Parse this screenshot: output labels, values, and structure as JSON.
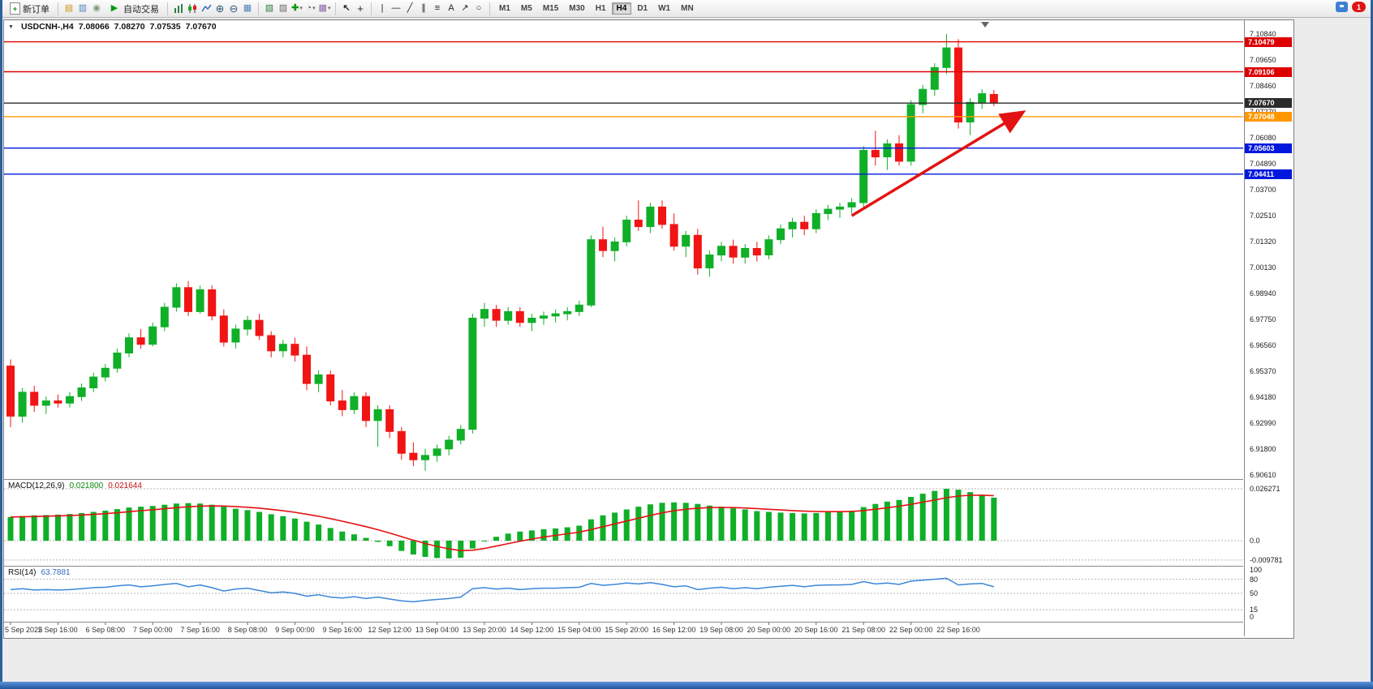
{
  "toolbar": {
    "new_order_label": "新订单",
    "autotrading_label": "自动交易",
    "timeframes": [
      "M1",
      "M5",
      "M15",
      "M30",
      "H1",
      "H4",
      "D1",
      "W1",
      "MN"
    ],
    "active_timeframe": "H4",
    "notification_count": "1"
  },
  "chart": {
    "symbol_period": "USDCNH-,H4",
    "open": "7.08066",
    "high": "7.08270",
    "low": "7.07535",
    "close": "7.07670"
  },
  "chart_data": [
    {
      "id": "main",
      "type": "candlestick",
      "title": "USDCNH-,H4",
      "ohlc_display": [
        "7.08066",
        "7.08270",
        "7.07535",
        "7.07670"
      ],
      "y_range": [
        6.9042,
        7.1147
      ],
      "price_ticks": [
        "7.10840",
        "7.09650",
        "7.08460",
        "7.07270",
        "7.06080",
        "7.04890",
        "7.03700",
        "7.02510",
        "7.01320",
        "7.00130",
        "6.98940",
        "6.97750",
        "6.96560",
        "6.95370",
        "6.94180",
        "6.92990",
        "6.91800",
        "6.90610"
      ],
      "x_labels": [
        "5 Sep 2022",
        "5 Sep 16:00",
        "6 Sep 08:00",
        "7 Sep 00:00",
        "7 Sep 16:00",
        "8 Sep 08:00",
        "9 Sep 00:00",
        "9 Sep 16:00",
        "12 Sep 12:00",
        "13 Sep 04:00",
        "13 Sep 20:00",
        "14 Sep 12:00",
        "15 Sep 04:00",
        "15 Sep 20:00",
        "16 Sep 12:00",
        "19 Sep 08:00",
        "20 Sep 00:00",
        "20 Sep 16:00",
        "21 Sep 08:00",
        "22 Sep 00:00",
        "22 Sep 16:00"
      ],
      "colors": {
        "up": "#0faf28",
        "down": "#f11414",
        "background": "#ffffff"
      },
      "hlines": [
        {
          "name": "resistance-line-upper",
          "price": 7.10479,
          "label": "7.10479",
          "color": "#dd0000"
        },
        {
          "name": "resistance-line-lower",
          "price": 7.09106,
          "label": "7.09106",
          "color": "#dd0000"
        },
        {
          "name": "current-price-line",
          "price": 7.0767,
          "label": "7.07670",
          "color": "#2b2b2b"
        },
        {
          "name": "pivot-line-orange",
          "price": 7.07048,
          "label": "7.07048",
          "color": "#ff9800"
        },
        {
          "name": "support-line-upper",
          "price": 7.05603,
          "label": "7.05603",
          "color": "#0018dd"
        },
        {
          "name": "support-line-lower",
          "price": 7.04411,
          "label": "7.04411",
          "color": "#0018dd"
        }
      ],
      "trend_arrow": {
        "from_candle": 71,
        "from_price": 7.025,
        "to_candle": 85.3,
        "to_price": 7.072,
        "color": "#e31212"
      },
      "candles": [
        [
          6.956,
          6.959,
          6.928,
          6.933
        ],
        [
          6.933,
          6.946,
          6.93,
          6.944
        ],
        [
          6.944,
          6.947,
          6.935,
          6.938
        ],
        [
          6.938,
          6.942,
          6.934,
          6.94
        ],
        [
          6.94,
          6.943,
          6.937,
          6.939
        ],
        [
          6.939,
          6.944,
          6.937,
          6.942
        ],
        [
          6.942,
          6.948,
          6.94,
          6.946
        ],
        [
          6.946,
          6.953,
          6.944,
          6.951
        ],
        [
          6.951,
          6.957,
          6.949,
          6.955
        ],
        [
          6.955,
          6.964,
          6.953,
          6.962
        ],
        [
          6.962,
          6.971,
          6.96,
          6.969
        ],
        [
          6.969,
          6.973,
          6.964,
          6.966
        ],
        [
          6.966,
          6.976,
          6.965,
          6.974
        ],
        [
          6.974,
          6.985,
          6.972,
          6.983
        ],
        [
          6.983,
          6.994,
          6.981,
          6.992
        ],
        [
          6.992,
          6.995,
          6.979,
          6.981
        ],
        [
          6.981,
          6.993,
          6.98,
          6.991
        ],
        [
          6.991,
          6.993,
          6.977,
          6.979
        ],
        [
          6.979,
          6.982,
          6.965,
          6.967
        ],
        [
          6.967,
          6.975,
          6.964,
          6.973
        ],
        [
          6.973,
          6.979,
          6.97,
          6.977
        ],
        [
          6.977,
          6.98,
          6.968,
          6.97
        ],
        [
          6.97,
          6.972,
          6.96,
          6.963
        ],
        [
          6.963,
          6.968,
          6.96,
          6.966
        ],
        [
          6.966,
          6.969,
          6.958,
          6.961
        ],
        [
          6.961,
          6.965,
          6.945,
          6.948
        ],
        [
          6.948,
          6.954,
          6.944,
          6.952
        ],
        [
          6.952,
          6.954,
          6.938,
          6.94
        ],
        [
          6.94,
          6.945,
          6.933,
          6.936
        ],
        [
          6.936,
          6.944,
          6.934,
          6.942
        ],
        [
          6.942,
          6.944,
          6.928,
          6.931
        ],
        [
          6.931,
          6.938,
          6.919,
          6.936
        ],
        [
          6.936,
          6.938,
          6.923,
          6.926
        ],
        [
          6.926,
          6.928,
          6.913,
          6.916
        ],
        [
          6.916,
          6.921,
          6.91,
          6.913
        ],
        [
          6.913,
          6.918,
          6.908,
          6.915
        ],
        [
          6.915,
          6.92,
          6.912,
          6.918
        ],
        [
          6.918,
          6.924,
          6.915,
          6.922
        ],
        [
          6.922,
          6.929,
          6.92,
          6.927
        ],
        [
          6.927,
          6.98,
          6.925,
          6.978
        ],
        [
          6.978,
          6.985,
          6.974,
          6.982
        ],
        [
          6.982,
          6.984,
          6.974,
          6.977
        ],
        [
          6.977,
          6.983,
          6.975,
          6.981
        ],
        [
          6.981,
          6.983,
          6.974,
          6.976
        ],
        [
          6.976,
          6.98,
          6.972,
          6.978
        ],
        [
          6.978,
          6.981,
          6.975,
          6.979
        ],
        [
          6.979,
          6.982,
          6.976,
          6.98
        ],
        [
          6.98,
          6.983,
          6.977,
          6.981
        ],
        [
          6.981,
          6.986,
          6.979,
          6.984
        ],
        [
          6.984,
          7.016,
          6.983,
          7.014
        ],
        [
          7.014,
          7.02,
          7.006,
          7.009
        ],
        [
          7.009,
          7.015,
          7.004,
          7.013
        ],
        [
          7.013,
          7.025,
          7.011,
          7.023
        ],
        [
          7.023,
          7.032,
          7.018,
          7.02
        ],
        [
          7.02,
          7.031,
          7.017,
          7.029
        ],
        [
          7.029,
          7.032,
          7.019,
          7.021
        ],
        [
          7.021,
          7.026,
          7.009,
          7.011
        ],
        [
          7.011,
          7.018,
          7.006,
          7.016
        ],
        [
          7.016,
          7.019,
          6.998,
          7.001
        ],
        [
          7.001,
          7.009,
          6.997,
          7.007
        ],
        [
          7.007,
          7.013,
          7.004,
          7.011
        ],
        [
          7.011,
          7.014,
          7.003,
          7.006
        ],
        [
          7.006,
          7.012,
          7.003,
          7.01
        ],
        [
          7.01,
          7.013,
          7.004,
          7.007
        ],
        [
          7.007,
          7.016,
          7.005,
          7.014
        ],
        [
          7.014,
          7.021,
          7.012,
          7.019
        ],
        [
          7.019,
          7.024,
          7.015,
          7.022
        ],
        [
          7.022,
          7.025,
          7.016,
          7.019
        ],
        [
          7.019,
          7.028,
          7.017,
          7.026
        ],
        [
          7.026,
          7.03,
          7.023,
          7.028
        ],
        [
          7.028,
          7.031,
          7.024,
          7.029
        ],
        [
          7.029,
          7.033,
          7.026,
          7.031
        ],
        [
          7.031,
          7.057,
          7.029,
          7.055
        ],
        [
          7.055,
          7.064,
          7.048,
          7.052
        ],
        [
          7.052,
          7.06,
          7.046,
          7.058
        ],
        [
          7.058,
          7.062,
          7.048,
          7.05
        ],
        [
          7.05,
          7.078,
          7.048,
          7.076
        ],
        [
          7.076,
          7.085,
          7.072,
          7.083
        ],
        [
          7.083,
          7.095,
          7.08,
          7.093
        ],
        [
          7.093,
          7.1084,
          7.09,
          7.102
        ],
        [
          7.102,
          7.106,
          7.065,
          7.068
        ],
        [
          7.068,
          7.079,
          7.062,
          7.077
        ],
        [
          7.077,
          7.083,
          7.074,
          7.081
        ],
        [
          7.08066,
          7.0827,
          7.07535,
          7.0767
        ]
      ]
    },
    {
      "id": "macd",
      "type": "bar",
      "label": "MACD(12,26,9)",
      "value_main": "0.021800",
      "value_signal": "0.021644",
      "y_ticks": [
        {
          "value": 0.026271,
          "label": "0.026271"
        },
        {
          "value": 0,
          "label": "0.0"
        },
        {
          "value": -0.009781,
          "label": "-0.009781"
        }
      ],
      "colors": {
        "histogram": "#0faf28",
        "signal": "#e31212"
      },
      "signal_period": 9,
      "histogram": [
        0.012,
        0.0125,
        0.0128,
        0.013,
        0.0132,
        0.0135,
        0.014,
        0.0146,
        0.0152,
        0.016,
        0.0168,
        0.0172,
        0.0176,
        0.0182,
        0.0188,
        0.019,
        0.0188,
        0.0182,
        0.0172,
        0.0162,
        0.0155,
        0.0146,
        0.0134,
        0.0124,
        0.0112,
        0.0096,
        0.0082,
        0.0064,
        0.0046,
        0.0032,
        0.0014,
        -0.0006,
        -0.0028,
        -0.0052,
        -0.007,
        -0.0082,
        -0.0088,
        -0.009,
        -0.0086,
        -0.004,
        -0.0004,
        0.002,
        0.0036,
        0.0046,
        0.0052,
        0.0058,
        0.0062,
        0.0068,
        0.0076,
        0.0108,
        0.0128,
        0.0142,
        0.0158,
        0.0172,
        0.0184,
        0.0192,
        0.0194,
        0.0192,
        0.0186,
        0.0178,
        0.0172,
        0.0164,
        0.0158,
        0.015,
        0.0146,
        0.0142,
        0.014,
        0.0138,
        0.014,
        0.0144,
        0.0148,
        0.0152,
        0.017,
        0.0186,
        0.0198,
        0.0206,
        0.0222,
        0.0238,
        0.0252,
        0.0263,
        0.0258,
        0.0246,
        0.0232,
        0.0218
      ]
    },
    {
      "id": "rsi",
      "type": "line",
      "label": "RSI(14)",
      "value": "63.7881",
      "levels": [
        80,
        50,
        15
      ],
      "y_ticks": [
        {
          "value": 100,
          "label": "100"
        },
        {
          "value": 80,
          "label": "80"
        },
        {
          "value": 50,
          "label": "50"
        },
        {
          "value": 15,
          "label": "15"
        },
        {
          "value": 0,
          "label": "0"
        }
      ],
      "color": "#3c86d8",
      "values": [
        58,
        60,
        57,
        58,
        57,
        58,
        60,
        62,
        63,
        66,
        68,
        64,
        66,
        69,
        71,
        64,
        68,
        62,
        55,
        59,
        61,
        56,
        51,
        53,
        50,
        44,
        47,
        42,
        40,
        43,
        39,
        42,
        38,
        34,
        32,
        35,
        37,
        39,
        42,
        60,
        62,
        59,
        61,
        58,
        60,
        61,
        61,
        62,
        63,
        71,
        67,
        69,
        72,
        70,
        73,
        69,
        64,
        66,
        58,
        61,
        63,
        60,
        62,
        60,
        63,
        65,
        67,
        64,
        67,
        68,
        68,
        69,
        75,
        70,
        72,
        69,
        76,
        78,
        80,
        82,
        68,
        70,
        71,
        64
      ]
    }
  ]
}
